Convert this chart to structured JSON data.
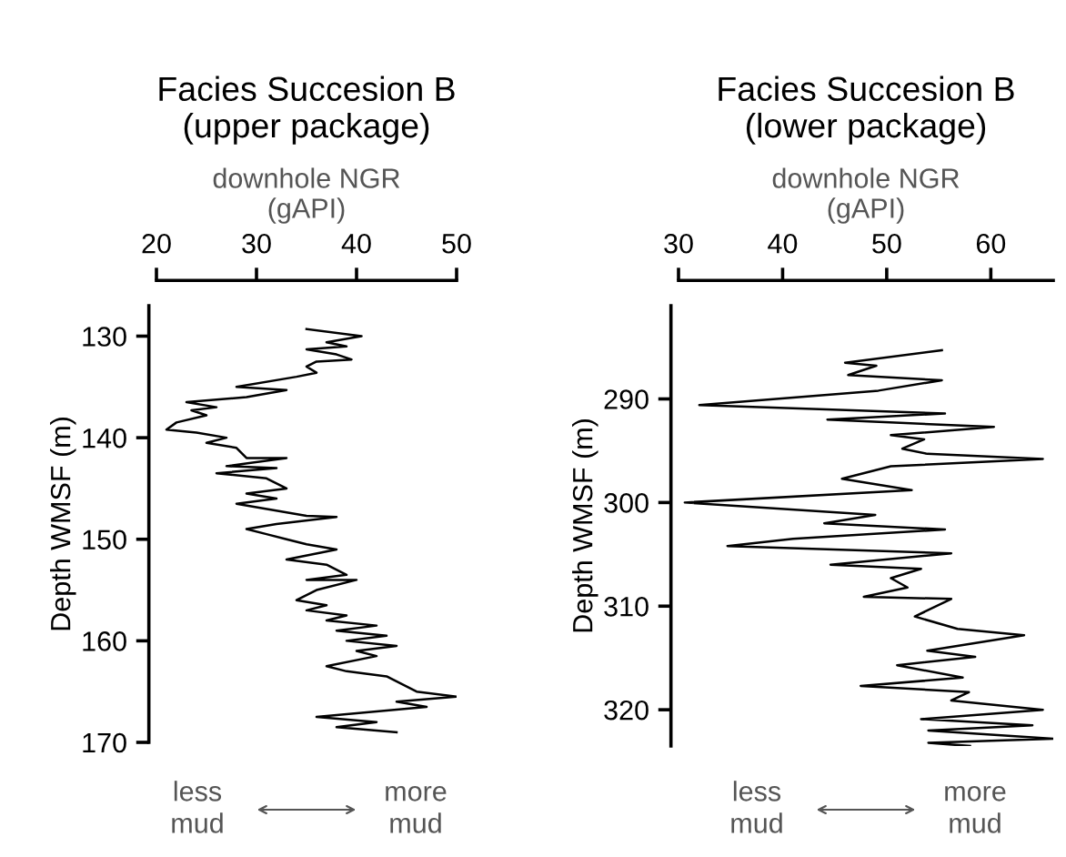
{
  "chart_data": [
    {
      "type": "line",
      "title": "Facies Succesion B\n(upper package)",
      "xlabel": "downhole NGR\n(gAPI)",
      "ylabel": "Depth WMSF (m)",
      "xlim": [
        20,
        50
      ],
      "xticks": [
        20,
        30,
        40,
        50
      ],
      "ylim": [
        170,
        127
      ],
      "yticks": [
        130,
        140,
        150,
        160,
        170
      ],
      "marker": "none",
      "line_style": "solid",
      "annotations": [
        "less\nmud",
        "more\nmud"
      ],
      "series": [
        {
          "color": "#000000",
          "x": [
            35,
            40.5,
            37,
            39,
            35,
            38,
            39.5,
            36,
            35,
            36,
            34,
            28,
            33,
            29,
            23,
            26,
            23.5,
            25,
            22,
            21,
            24,
            27,
            25,
            28,
            29,
            33,
            27,
            32,
            26,
            31,
            33,
            29,
            32,
            28,
            35,
            38,
            32,
            29,
            31,
            33,
            35,
            38,
            33,
            37,
            39,
            35,
            40,
            36,
            34,
            37,
            35,
            39,
            37,
            42,
            38,
            43,
            39,
            44,
            40,
            42,
            37,
            39,
            43,
            46,
            50,
            44,
            47,
            36,
            42,
            38,
            44
          ],
          "values": [
            129.3,
            130,
            130.6,
            131,
            131.3,
            131.8,
            132.3,
            132.5,
            133,
            133.6,
            134,
            135,
            135.3,
            136,
            136.5,
            137,
            137.3,
            137.8,
            138.5,
            139.2,
            139.5,
            140,
            140.5,
            141,
            142,
            142,
            142.8,
            143,
            143.5,
            144,
            145,
            145.5,
            146,
            146.5,
            147.7,
            147.8,
            148.5,
            149,
            149.5,
            150,
            150.5,
            151,
            152,
            152.5,
            153.5,
            154,
            154,
            155,
            156,
            156.5,
            157,
            157.5,
            158,
            158.5,
            159,
            159.5,
            160,
            160.5,
            161,
            161.5,
            162.5,
            163,
            163.5,
            165,
            165.5,
            166,
            166.5,
            167.5,
            168,
            168.5,
            169
          ]
        }
      ]
    },
    {
      "type": "line",
      "title": "Facies Succesion B\n(lower package)",
      "xlabel": "downhole NGR\n(gAPI)",
      "ylabel": "Depth WMSF (m)",
      "xlim": [
        30,
        66
      ],
      "xticks": [
        30,
        40,
        50,
        60
      ],
      "ylim": [
        323.5,
        281
      ],
      "yticks": [
        290,
        300,
        310,
        320
      ],
      "marker": "none",
      "line_style": "solid",
      "annotations": [
        "less\nmud",
        "more\nmud"
      ],
      "series": [
        {
          "color": "#000000",
          "x": [
            55.3,
            46,
            49,
            46.3,
            55.3,
            49.2,
            32,
            55.6,
            44.3,
            60.3,
            50.4,
            53.6,
            51.5,
            53.9,
            65,
            50.4,
            45.7,
            52.4,
            30.6,
            48.9,
            44,
            55.6,
            41,
            34.7,
            56.2,
            44.6,
            53.3,
            50.4,
            52,
            47.8,
            56.2,
            52.7,
            56.8,
            63.2,
            53.9,
            58.5,
            51,
            57.3,
            47.5,
            57.9,
            56.2,
            65,
            53.3,
            64,
            54,
            66,
            54,
            58
          ],
          "values": [
            285.3,
            286.5,
            286.8,
            287.7,
            288.2,
            289.2,
            290.6,
            291.4,
            292,
            292.7,
            293.5,
            293.9,
            294.8,
            295.3,
            295.8,
            296.5,
            297.7,
            298.8,
            300,
            301.2,
            302,
            302.6,
            303.5,
            304.2,
            304.9,
            306,
            306.4,
            307.3,
            308.2,
            309.1,
            309.3,
            311,
            312.2,
            312.8,
            314.3,
            314.9,
            315.7,
            316.9,
            317.7,
            318.3,
            319.1,
            320,
            320.9,
            321.5,
            322,
            322.8,
            323.2,
            323.5
          ]
        }
      ]
    }
  ]
}
